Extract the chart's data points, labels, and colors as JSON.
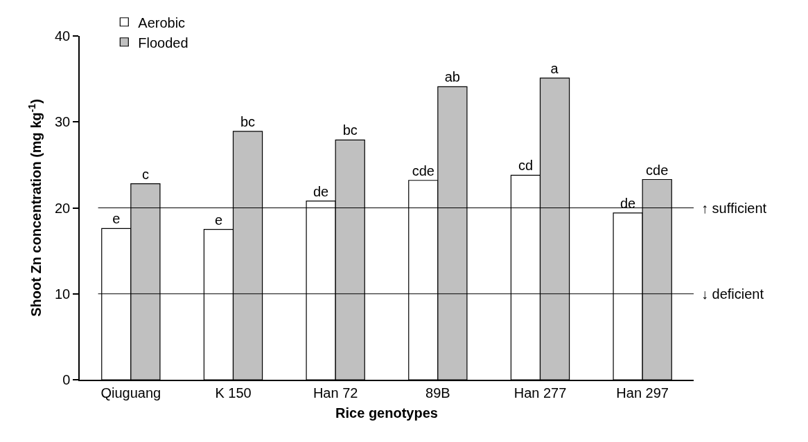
{
  "chart_data": {
    "type": "bar",
    "xlabel": "Rice genotypes",
    "ylabel": "Shoot Zn concentration (mg kg$^{-1}$)",
    "categories": [
      "Qiuguang",
      "K 150",
      "Han 72",
      "89B",
      "Han 277",
      "Han 297"
    ],
    "series": [
      {
        "name": "Aerobic",
        "color": "#ffffff",
        "values": [
          17.6,
          17.5,
          20.8,
          23.2,
          23.8,
          19.4
        ],
        "value_labels": [
          "e",
          "e",
          "de",
          "cde",
          "cd",
          "de"
        ]
      },
      {
        "name": "Flooded",
        "color": "#c0c0c0",
        "values": [
          22.8,
          28.9,
          27.9,
          34.1,
          35.1,
          23.3
        ],
        "value_labels": [
          "c",
          "bc",
          "bc",
          "ab",
          "a",
          "cde"
        ]
      }
    ],
    "ylim": [
      0,
      40
    ],
    "yticks": [
      0,
      10,
      20,
      30,
      40
    ],
    "grid": false,
    "legend": "top left",
    "ref_lines": [
      {
        "axis": "y",
        "value": 20,
        "label": "↑ sufficient",
        "color": "#000000"
      },
      {
        "axis": "y",
        "value": 10,
        "label": "↓ deficient",
        "color": "#000000"
      }
    ]
  }
}
